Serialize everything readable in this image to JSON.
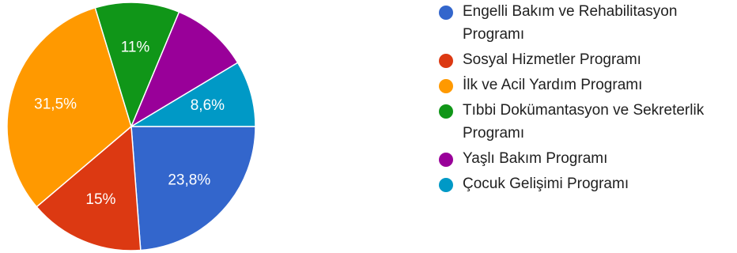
{
  "chart_data": {
    "type": "pie",
    "slices": [
      {
        "label": "Engelli Bakım ve Rehabilitasyon Programı",
        "value": 23.8,
        "value_label": "23,8%",
        "color": "#3366cc"
      },
      {
        "label": "Sosyal Hizmetler Programı",
        "value": 15,
        "value_label": "15%",
        "color": "#dc3912"
      },
      {
        "label": "İlk ve Acil Yardım Programı",
        "value": 31.5,
        "value_label": "31,5%",
        "color": "#ff9900"
      },
      {
        "label": "Tıbbi Dokümantasyon ve Sekreterlik Programı",
        "value": 11,
        "value_label": "11%",
        "color": "#109618"
      },
      {
        "label": "Yaşlı Bakım Programı",
        "value": 10.1,
        "value_label": "",
        "color": "#990099"
      },
      {
        "label": "Çocuk Gelişimi Programı",
        "value": 8.6,
        "value_label": "8,6%",
        "color": "#0099c6"
      }
    ],
    "start_angle_deg": 90,
    "direction": "clockwise",
    "legend_position": "right"
  }
}
